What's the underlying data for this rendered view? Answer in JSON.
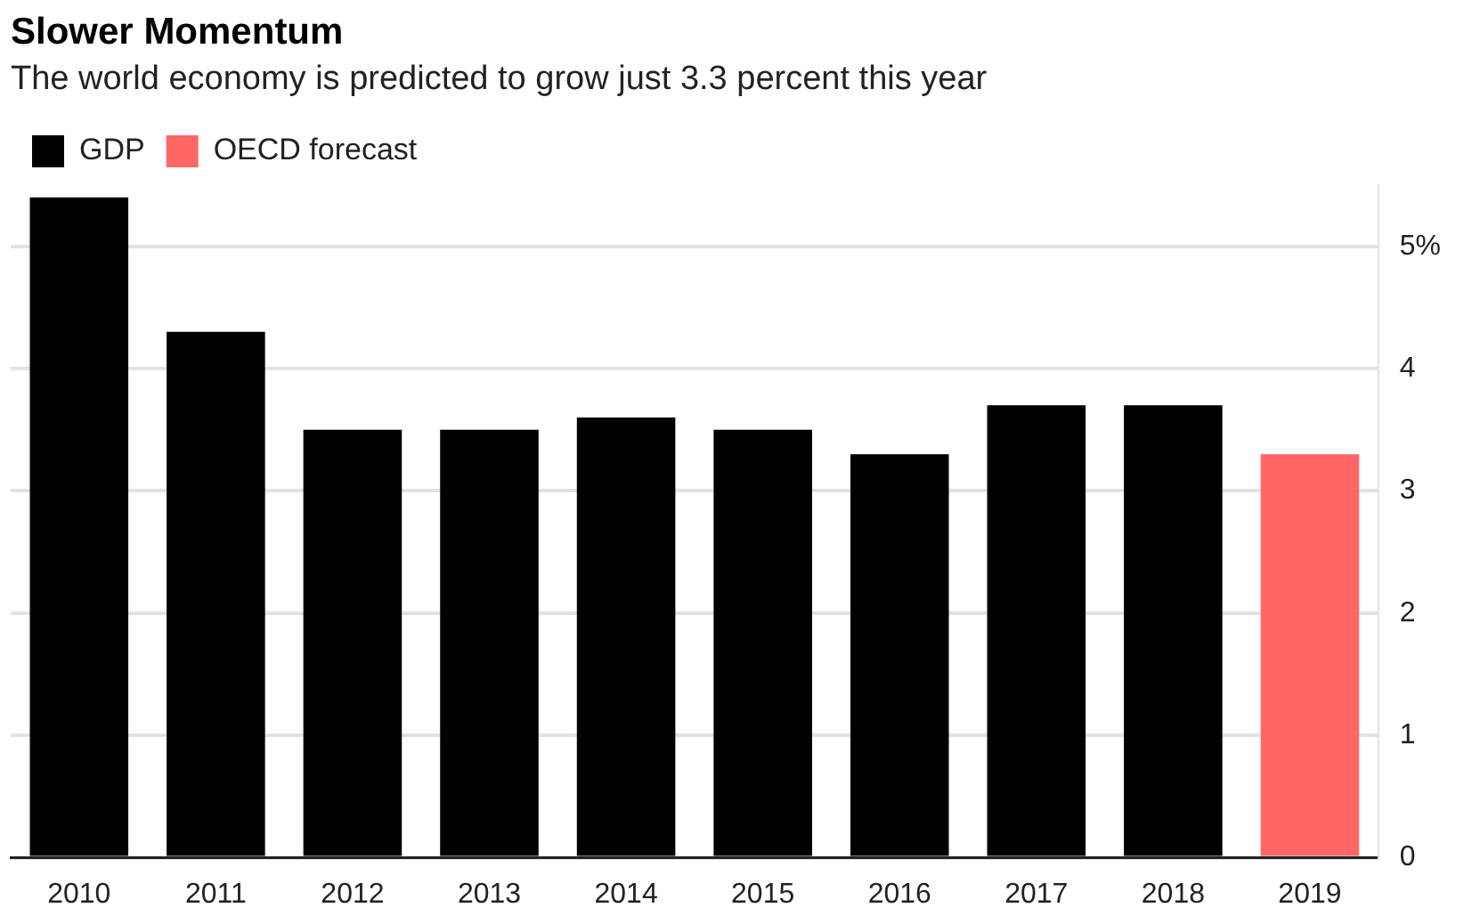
{
  "chart_data": {
    "type": "bar",
    "title": "Slower Momentum",
    "subtitle": "The world economy is predicted to grow just 3.3 percent this year",
    "categories": [
      "2010",
      "2011",
      "2012",
      "2013",
      "2014",
      "2015",
      "2016",
      "2017",
      "2018",
      "2019"
    ],
    "series": [
      {
        "name": "GDP",
        "color": "#000000",
        "values": [
          5.4,
          4.3,
          3.5,
          3.5,
          3.6,
          3.5,
          3.3,
          3.7,
          3.7,
          null
        ]
      },
      {
        "name": "OECD forecast",
        "color": "#ff6666",
        "values": [
          null,
          null,
          null,
          null,
          null,
          null,
          null,
          null,
          null,
          3.3
        ]
      }
    ],
    "stacked": true,
    "ylim": [
      0,
      5.5
    ],
    "yticks": [
      0,
      1,
      2,
      3,
      4,
      {
        "value": 5,
        "label": "5%"
      }
    ],
    "grid": "y",
    "legend": "top left"
  }
}
